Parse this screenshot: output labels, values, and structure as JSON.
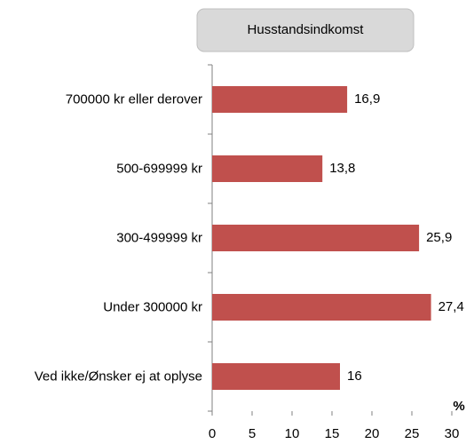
{
  "chart_data": {
    "type": "bar",
    "orientation": "horizontal",
    "title": "Husstandsindkomst",
    "x_label": "%",
    "categories": [
      "700000 kr eller derover",
      "500-699999 kr",
      "300-499999 kr",
      "Under 300000 kr",
      "Ved ikke/Ønsker ej at oplyse"
    ],
    "values": [
      16.9,
      13.8,
      25.9,
      27.4,
      16
    ],
    "value_labels": [
      "16,9",
      "13,8",
      "25,9",
      "27,4",
      "16"
    ],
    "color": "#c0504d",
    "xlim": [
      0,
      30
    ],
    "xticks": [
      0,
      5,
      10,
      15,
      20,
      25,
      30
    ],
    "grid": false
  }
}
